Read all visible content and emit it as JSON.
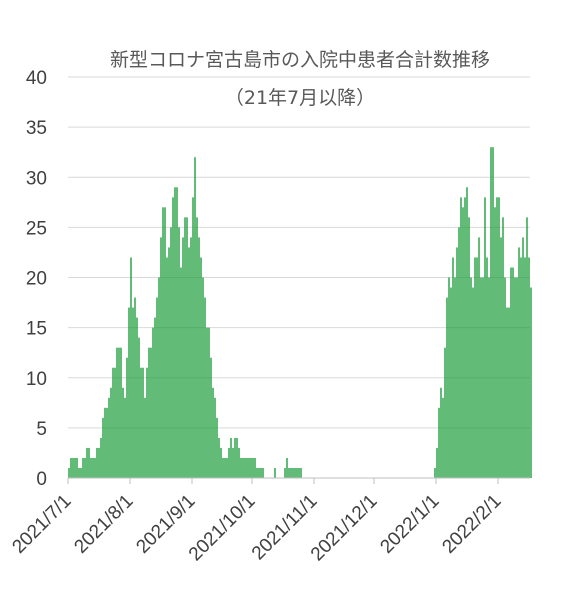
{
  "chart_data": {
    "type": "bar",
    "title": "新型コロナ宮古島市の入院中患者合計数推移",
    "subtitle": "（21年7月以降）",
    "xlabel": "",
    "ylabel": "",
    "ylim": [
      0,
      40
    ],
    "yticks": [
      0,
      5,
      10,
      15,
      20,
      25,
      30,
      35,
      40
    ],
    "x_tick_labels": [
      "2021/7/1",
      "2021/8/1",
      "2021/9/1",
      "2021/10/1",
      "2021/11/1",
      "2021/12/1",
      "2022/1/1",
      "2022/2/1"
    ],
    "x_start": "2021/7/1",
    "grid": true,
    "legend": "none",
    "bar_color": "#1e9e3c",
    "series": [
      {
        "segments": [
          {
            "from": "2021/7/1",
            "values": [
              1,
              2,
              2,
              2,
              2,
              1,
              1,
              2,
              2,
              3,
              3,
              2,
              2,
              2,
              3,
              3,
              4,
              6,
              7,
              7,
              8,
              9,
              11,
              11,
              13,
              13,
              13,
              9,
              8,
              12,
              17,
              22,
              17,
              18,
              16,
              14,
              11,
              11,
              8,
              11,
              13,
              13,
              15,
              16,
              18,
              20,
              24,
              27,
              27,
              22,
              23,
              25,
              28,
              29,
              29,
              25,
              21,
              24,
              26,
              26,
              23,
              24,
              28,
              32,
              26,
              24,
              22,
              20,
              18,
              15,
              15,
              12,
              9,
              8,
              6,
              4,
              3,
              2,
              2,
              2,
              3,
              4,
              3,
              4,
              4,
              3,
              2,
              2,
              2,
              2,
              2,
              2,
              2,
              2,
              1,
              1,
              1,
              1
            ]
          },
          {
            "from": "2021/10/12",
            "values": [
              1
            ]
          },
          {
            "from": "2021/10/17",
            "values": [
              1,
              2,
              1,
              1,
              1,
              1,
              1,
              1,
              1
            ]
          },
          {
            "from": "2021/12/31",
            "values": [
              1,
              3,
              7,
              9,
              8,
              13,
              18,
              20,
              19,
              22,
              20,
              23,
              25,
              28,
              27,
              28,
              29,
              26,
              20,
              19,
              22,
              22,
              24,
              20,
              20,
              28,
              22,
              20,
              33,
              33,
              27,
              28,
              28,
              24,
              26,
              20,
              17,
              17,
              21,
              21,
              20,
              20,
              23,
              22,
              24,
              22,
              26,
              22,
              19
            ]
          }
        ]
      }
    ]
  }
}
